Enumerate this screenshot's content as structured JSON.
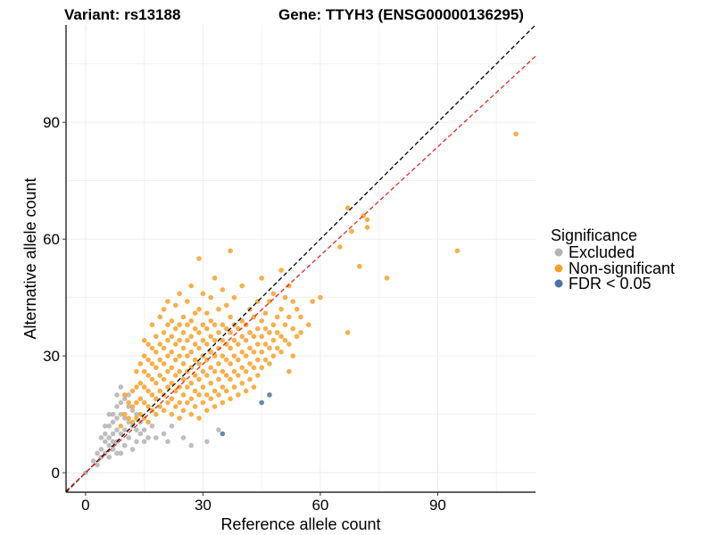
{
  "chart_data": {
    "type": "scatter",
    "title_left": "Variant: rs13188",
    "title_right": "Gene: TTYH3 (ENSG00000136295)",
    "xlabel": "Reference allele count",
    "ylabel": "Alternative allele count",
    "xlim": [
      -5,
      115
    ],
    "ylim": [
      -5,
      115
    ],
    "x_ticks": [
      0,
      30,
      60,
      90
    ],
    "y_ticks": [
      0,
      30,
      60,
      90
    ],
    "x_tick_labels": [
      "0",
      "30",
      "60",
      "90"
    ],
    "y_tick_labels": [
      "0",
      "30",
      "60",
      "90"
    ],
    "grid": true,
    "legend": {
      "title": "Significance",
      "position": "right",
      "entries": [
        {
          "label": "Excluded",
          "color": "#b3b3b3"
        },
        {
          "label": "Non-significant",
          "color": "#f7a12a"
        },
        {
          "label": "FDR < 0.05",
          "color": "#4a72a8"
        }
      ]
    },
    "reference_lines": [
      {
        "name": "identity",
        "slope": 1.0,
        "intercept": 0,
        "color": "#000000",
        "dash": "dashed"
      },
      {
        "name": "fitted",
        "slope": 0.93,
        "intercept": 0,
        "color": "#e8251f",
        "dash": "dashed"
      }
    ],
    "series": [
      {
        "name": "Excluded",
        "color": "#b3b3b3",
        "points": [
          [
            0,
            0
          ],
          [
            2,
            3
          ],
          [
            3,
            2
          ],
          [
            3,
            5
          ],
          [
            4,
            4
          ],
          [
            4,
            6
          ],
          [
            5,
            5
          ],
          [
            5,
            8
          ],
          [
            5,
            10
          ],
          [
            6,
            4
          ],
          [
            6,
            7
          ],
          [
            6,
            9
          ],
          [
            6,
            12
          ],
          [
            7,
            6
          ],
          [
            7,
            10
          ],
          [
            7,
            13
          ],
          [
            7,
            15
          ],
          [
            8,
            8
          ],
          [
            8,
            11
          ],
          [
            8,
            14
          ],
          [
            8,
            17
          ],
          [
            8,
            20
          ],
          [
            9,
            5
          ],
          [
            9,
            10
          ],
          [
            9,
            15
          ],
          [
            9,
            18
          ],
          [
            9,
            22
          ],
          [
            10,
            7
          ],
          [
            10,
            11
          ],
          [
            10,
            14
          ],
          [
            10,
            19
          ],
          [
            11,
            9
          ],
          [
            11,
            13
          ],
          [
            11,
            17
          ],
          [
            11,
            20
          ],
          [
            12,
            6
          ],
          [
            12,
            12
          ],
          [
            12,
            16
          ],
          [
            13,
            8
          ],
          [
            13,
            11
          ],
          [
            13,
            15
          ],
          [
            14,
            10
          ],
          [
            14,
            13
          ],
          [
            15,
            8
          ],
          [
            15,
            11
          ],
          [
            16,
            9
          ],
          [
            17,
            12
          ],
          [
            18,
            9
          ],
          [
            20,
            10
          ],
          [
            21,
            8
          ],
          [
            22,
            12
          ],
          [
            25,
            9
          ],
          [
            27,
            7
          ],
          [
            31,
            8
          ],
          [
            34,
            11
          ],
          [
            7,
            8
          ],
          [
            8,
            5
          ],
          [
            6,
            15
          ],
          [
            5,
            12
          ],
          [
            4,
            9
          ]
        ]
      },
      {
        "name": "Non-significant",
        "color": "#f7a12a",
        "points": [
          [
            9,
            12
          ],
          [
            10,
            15
          ],
          [
            10,
            20
          ],
          [
            11,
            14
          ],
          [
            11,
            18
          ],
          [
            12,
            13
          ],
          [
            12,
            17
          ],
          [
            12,
            21
          ],
          [
            13,
            14
          ],
          [
            13,
            18
          ],
          [
            13,
            22
          ],
          [
            13,
            26
          ],
          [
            14,
            15
          ],
          [
            14,
            19
          ],
          [
            14,
            23
          ],
          [
            14,
            28
          ],
          [
            15,
            14
          ],
          [
            15,
            18
          ],
          [
            15,
            22
          ],
          [
            15,
            26
          ],
          [
            15,
            30
          ],
          [
            15,
            34
          ],
          [
            16,
            13
          ],
          [
            16,
            17
          ],
          [
            16,
            21
          ],
          [
            16,
            25
          ],
          [
            16,
            29
          ],
          [
            16,
            33
          ],
          [
            17,
            16
          ],
          [
            17,
            20
          ],
          [
            17,
            24
          ],
          [
            17,
            28
          ],
          [
            17,
            32
          ],
          [
            17,
            38
          ],
          [
            18,
            15
          ],
          [
            18,
            19
          ],
          [
            18,
            23
          ],
          [
            18,
            27
          ],
          [
            18,
            31
          ],
          [
            18,
            35
          ],
          [
            19,
            17
          ],
          [
            19,
            21
          ],
          [
            19,
            25
          ],
          [
            19,
            29
          ],
          [
            19,
            33
          ],
          [
            19,
            40
          ],
          [
            20,
            16
          ],
          [
            20,
            20
          ],
          [
            20,
            24
          ],
          [
            20,
            28
          ],
          [
            20,
            32
          ],
          [
            20,
            36
          ],
          [
            20,
            42
          ],
          [
            21,
            18
          ],
          [
            21,
            22
          ],
          [
            21,
            26
          ],
          [
            21,
            30
          ],
          [
            21,
            34
          ],
          [
            21,
            38
          ],
          [
            21,
            44
          ],
          [
            22,
            15
          ],
          [
            22,
            19
          ],
          [
            22,
            23
          ],
          [
            22,
            27
          ],
          [
            22,
            31
          ],
          [
            22,
            35
          ],
          [
            22,
            39
          ],
          [
            23,
            17
          ],
          [
            23,
            21
          ],
          [
            23,
            25
          ],
          [
            23,
            29
          ],
          [
            23,
            33
          ],
          [
            23,
            37
          ],
          [
            23,
            43
          ],
          [
            24,
            14
          ],
          [
            24,
            18
          ],
          [
            24,
            22
          ],
          [
            24,
            26
          ],
          [
            24,
            30
          ],
          [
            24,
            34
          ],
          [
            24,
            38
          ],
          [
            24,
            46
          ],
          [
            25,
            16
          ],
          [
            25,
            20
          ],
          [
            25,
            24
          ],
          [
            25,
            28
          ],
          [
            25,
            32
          ],
          [
            25,
            36
          ],
          [
            25,
            40
          ],
          [
            26,
            18
          ],
          [
            26,
            22
          ],
          [
            26,
            26
          ],
          [
            26,
            30
          ],
          [
            26,
            34
          ],
          [
            26,
            38
          ],
          [
            26,
            44
          ],
          [
            27,
            15
          ],
          [
            27,
            19
          ],
          [
            27,
            23
          ],
          [
            27,
            27
          ],
          [
            27,
            31
          ],
          [
            27,
            35
          ],
          [
            27,
            39
          ],
          [
            27,
            48
          ],
          [
            28,
            17
          ],
          [
            28,
            21
          ],
          [
            28,
            25
          ],
          [
            28,
            29
          ],
          [
            28,
            33
          ],
          [
            28,
            37
          ],
          [
            28,
            41
          ],
          [
            29,
            14
          ],
          [
            29,
            20
          ],
          [
            29,
            24
          ],
          [
            29,
            28
          ],
          [
            29,
            32
          ],
          [
            29,
            36
          ],
          [
            29,
            42
          ],
          [
            29,
            55
          ],
          [
            30,
            18
          ],
          [
            30,
            22
          ],
          [
            30,
            26
          ],
          [
            30,
            30
          ],
          [
            30,
            34
          ],
          [
            30,
            38
          ],
          [
            30,
            46
          ],
          [
            31,
            16
          ],
          [
            31,
            20
          ],
          [
            31,
            25
          ],
          [
            31,
            29
          ],
          [
            31,
            33
          ],
          [
            31,
            37
          ],
          [
            31,
            41
          ],
          [
            32,
            19
          ],
          [
            32,
            23
          ],
          [
            32,
            27
          ],
          [
            32,
            31
          ],
          [
            32,
            35
          ],
          [
            32,
            39
          ],
          [
            32,
            45
          ],
          [
            33,
            17
          ],
          [
            33,
            21
          ],
          [
            33,
            26
          ],
          [
            33,
            30
          ],
          [
            33,
            34
          ],
          [
            33,
            38
          ],
          [
            33,
            50
          ],
          [
            34,
            20
          ],
          [
            34,
            24
          ],
          [
            34,
            28
          ],
          [
            34,
            32
          ],
          [
            34,
            36
          ],
          [
            34,
            42
          ],
          [
            35,
            18
          ],
          [
            35,
            22
          ],
          [
            35,
            26
          ],
          [
            35,
            30
          ],
          [
            35,
            34
          ],
          [
            35,
            38
          ],
          [
            35,
            47
          ],
          [
            36,
            21
          ],
          [
            36,
            25
          ],
          [
            36,
            29
          ],
          [
            36,
            33
          ],
          [
            36,
            37
          ],
          [
            36,
            43
          ],
          [
            37,
            19
          ],
          [
            37,
            24
          ],
          [
            37,
            28
          ],
          [
            37,
            32
          ],
          [
            37,
            36
          ],
          [
            37,
            40
          ],
          [
            37,
            57
          ],
          [
            38,
            22
          ],
          [
            38,
            26
          ],
          [
            38,
            30
          ],
          [
            38,
            34
          ],
          [
            38,
            38
          ],
          [
            38,
            45
          ],
          [
            39,
            20
          ],
          [
            39,
            25
          ],
          [
            39,
            29
          ],
          [
            39,
            33
          ],
          [
            39,
            37
          ],
          [
            40,
            23
          ],
          [
            40,
            27
          ],
          [
            40,
            31
          ],
          [
            40,
            35
          ],
          [
            40,
            39
          ],
          [
            40,
            48
          ],
          [
            41,
            21
          ],
          [
            41,
            26
          ],
          [
            41,
            30
          ],
          [
            41,
            34
          ],
          [
            41,
            38
          ],
          [
            42,
            24
          ],
          [
            42,
            28
          ],
          [
            42,
            32
          ],
          [
            42,
            36
          ],
          [
            42,
            42
          ],
          [
            43,
            22
          ],
          [
            43,
            27
          ],
          [
            43,
            31
          ],
          [
            43,
            35
          ],
          [
            43,
            40
          ],
          [
            44,
            25
          ],
          [
            44,
            29
          ],
          [
            44,
            33
          ],
          [
            44,
            37
          ],
          [
            44,
            44
          ],
          [
            45,
            27
          ],
          [
            45,
            31
          ],
          [
            45,
            35
          ],
          [
            45,
            39
          ],
          [
            45,
            50
          ],
          [
            46,
            29
          ],
          [
            46,
            33
          ],
          [
            46,
            37
          ],
          [
            46,
            41
          ],
          [
            47,
            28
          ],
          [
            47,
            32
          ],
          [
            47,
            36
          ],
          [
            47,
            44
          ],
          [
            48,
            30
          ],
          [
            48,
            34
          ],
          [
            48,
            38
          ],
          [
            48,
            46
          ],
          [
            49,
            32
          ],
          [
            49,
            36
          ],
          [
            49,
            40
          ],
          [
            50,
            31
          ],
          [
            50,
            35
          ],
          [
            50,
            42
          ],
          [
            50,
            52
          ],
          [
            51,
            34
          ],
          [
            51,
            38
          ],
          [
            51,
            45
          ],
          [
            52,
            26
          ],
          [
            52,
            33
          ],
          [
            52,
            40
          ],
          [
            52,
            48
          ],
          [
            53,
            30
          ],
          [
            53,
            37
          ],
          [
            53,
            44
          ],
          [
            54,
            35
          ],
          [
            54,
            42
          ],
          [
            55,
            36
          ],
          [
            55,
            40
          ],
          [
            57,
            38
          ],
          [
            58,
            44
          ],
          [
            60,
            45
          ],
          [
            67,
            36
          ],
          [
            67,
            68
          ],
          [
            68,
            62
          ],
          [
            70,
            53
          ],
          [
            71,
            66
          ],
          [
            72,
            65
          ],
          [
            72,
            63
          ],
          [
            65,
            58
          ],
          [
            77,
            50
          ],
          [
            95,
            57
          ],
          [
            110,
            87
          ]
        ]
      },
      {
        "name": "FDR < 0.05",
        "color": "#4a72a8",
        "points": [
          [
            35,
            10
          ],
          [
            45,
            18
          ],
          [
            47,
            20
          ]
        ]
      }
    ]
  }
}
